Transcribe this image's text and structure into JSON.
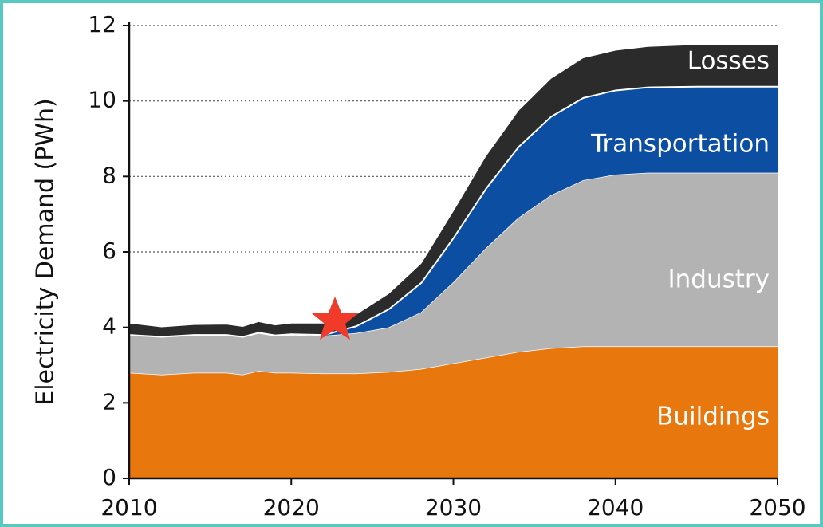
{
  "chart_data": {
    "type": "stacked_area",
    "y_label": "Electricity Demand (PWh)",
    "x": [
      2010,
      2012,
      2014,
      2016,
      2017,
      2018,
      2019,
      2020,
      2022,
      2024,
      2026,
      2028,
      2030,
      2032,
      2034,
      2036,
      2038,
      2040,
      2042,
      2045,
      2050
    ],
    "series": [
      {
        "name": "Buildings",
        "color": "#e8770e",
        "values": [
          2.8,
          2.75,
          2.8,
          2.8,
          2.75,
          2.85,
          2.8,
          2.8,
          2.78,
          2.78,
          2.82,
          2.9,
          3.05,
          3.2,
          3.35,
          3.45,
          3.5,
          3.5,
          3.5,
          3.5,
          3.5
        ]
      },
      {
        "name": "Industry",
        "color": "#b3b3b3",
        "values": [
          1.0,
          1.0,
          1.0,
          1.0,
          1.0,
          1.0,
          0.98,
          1.0,
          1.0,
          1.07,
          1.18,
          1.5,
          2.15,
          2.9,
          3.55,
          4.05,
          4.4,
          4.55,
          4.6,
          4.6,
          4.6
        ]
      },
      {
        "name": "Transportation",
        "color": "#0b4ea2",
        "values": [
          0.02,
          0.02,
          0.02,
          0.02,
          0.02,
          0.03,
          0.03,
          0.04,
          0.04,
          0.2,
          0.5,
          0.8,
          1.2,
          1.6,
          1.9,
          2.1,
          2.2,
          2.25,
          2.28,
          2.3,
          2.3
        ]
      },
      {
        "name": "Losses",
        "color": "#2b2b2b",
        "values": [
          0.3,
          0.25,
          0.26,
          0.27,
          0.26,
          0.28,
          0.26,
          0.28,
          0.3,
          0.3,
          0.4,
          0.5,
          0.7,
          0.85,
          0.95,
          1.0,
          1.05,
          1.05,
          1.07,
          1.1,
          1.1
        ]
      }
    ],
    "xlim": [
      2010,
      2050
    ],
    "xticks": [
      2010,
      2020,
      2030,
      2040,
      2050
    ],
    "ylim": [
      0,
      12
    ],
    "yticks": [
      0,
      2,
      4,
      6,
      8,
      10,
      12
    ],
    "grid": true
  }
}
